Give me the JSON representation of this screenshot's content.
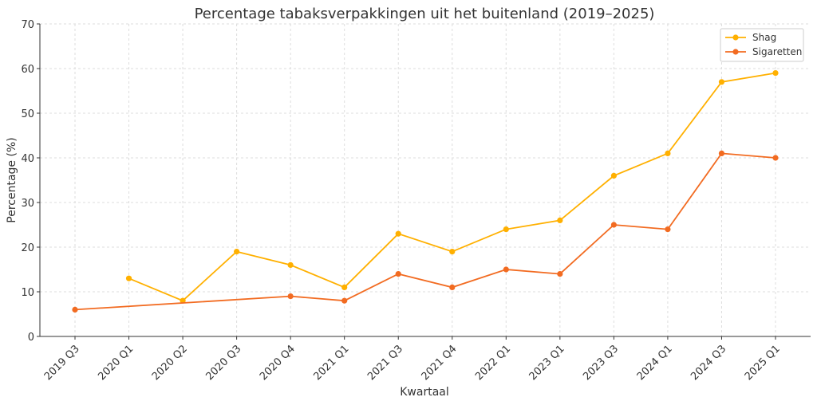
{
  "chart_data": {
    "type": "line",
    "title": "Percentage tabaksverpakkingen uit het buitenland (2019–2025)",
    "xlabel": "Kwartaal",
    "ylabel": "Percentage (%)",
    "ylim": [
      0,
      70
    ],
    "yticks": [
      0,
      10,
      20,
      30,
      40,
      50,
      60,
      70
    ],
    "grid": true,
    "legend_position": "upper right",
    "categories": [
      "2019 Q3",
      "2020 Q1",
      "2020 Q2",
      "2020 Q3",
      "2020 Q4",
      "2021 Q1",
      "2021 Q3",
      "2021 Q4",
      "2022 Q1",
      "2023 Q1",
      "2023 Q3",
      "2024 Q1",
      "2024 Q3",
      "2025 Q1"
    ],
    "series": [
      {
        "name": "Shag",
        "color": "#FFB000",
        "values": [
          null,
          13,
          8,
          19,
          16,
          11,
          23,
          19,
          24,
          26,
          36,
          41,
          57,
          59
        ]
      },
      {
        "name": "Sigaretten",
        "color": "#F26B21",
        "values": [
          6,
          null,
          null,
          null,
          9,
          8,
          14,
          11,
          15,
          14,
          25,
          24,
          41,
          40
        ]
      }
    ]
  }
}
